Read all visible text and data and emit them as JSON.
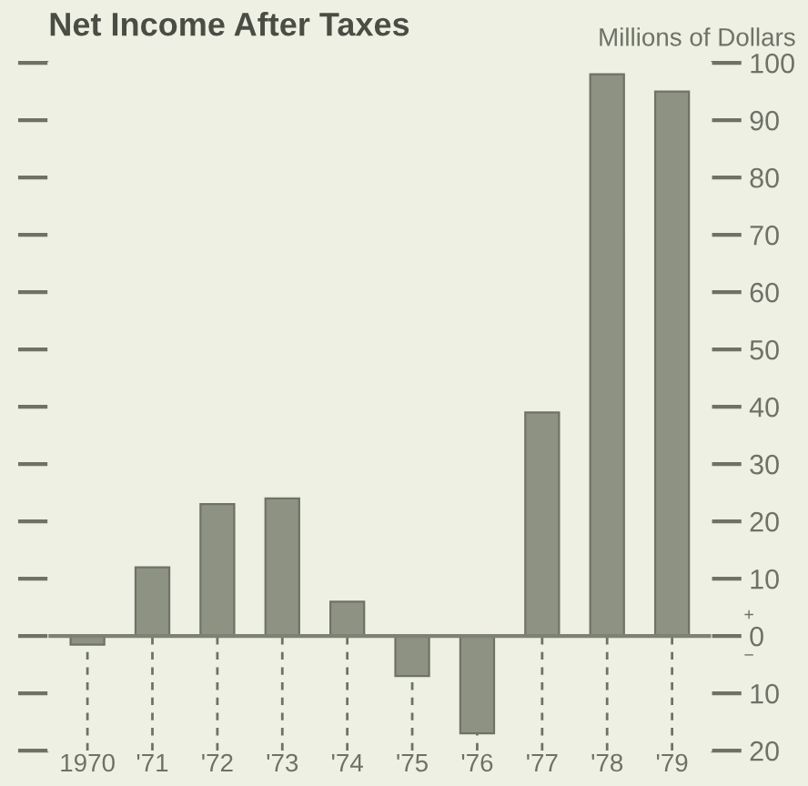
{
  "chart_data": {
    "type": "bar",
    "title": "Net Income After Taxes",
    "ylabel": "Millions of Dollars",
    "categories": [
      "1970",
      "'71",
      "'72",
      "'73",
      "'74",
      "'75",
      "'76",
      "'77",
      "'78",
      "'79"
    ],
    "values": [
      -1.5,
      12,
      23,
      24,
      6,
      -7,
      -17,
      39,
      98,
      95
    ],
    "color": "#8e9282",
    "ylim": [
      -20,
      100
    ],
    "yticks": [
      {
        "value": -20,
        "label": "20"
      },
      {
        "value": -10,
        "label": "10"
      },
      0,
      10,
      20,
      30,
      40,
      50,
      60,
      70,
      80,
      90,
      100
    ],
    "ref_lines": [
      {
        "axis": "y",
        "value": 0,
        "color": "#7d8274"
      }
    ],
    "annotations": [
      "+",
      "−"
    ],
    "grid": "x",
    "line_style": "dashed"
  }
}
